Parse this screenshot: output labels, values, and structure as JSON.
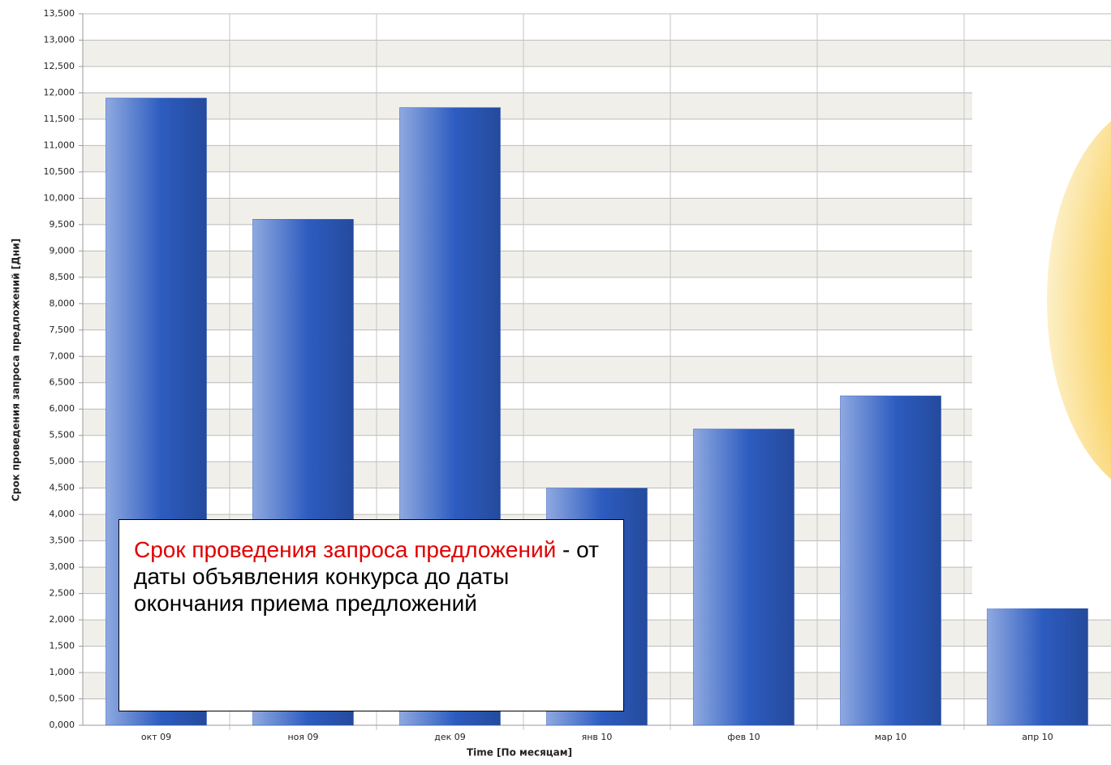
{
  "chart_data": {
    "type": "bar",
    "y_label": "Срок проведения запроса предложений [Дни]",
    "x_label": "Time [По месяцам]",
    "categories": [
      "окт 09",
      "ноя 09",
      "дек 09",
      "янв 10",
      "фев 10",
      "мар 10",
      "апр 10"
    ],
    "values": [
      11.9,
      9.6,
      11.72,
      4.5,
      5.62,
      6.25,
      2.6
    ],
    "color": "#2a56b8",
    "ylim": [
      0,
      13.5
    ],
    "yticks": [
      {
        "value": 0,
        "label": "0,000"
      },
      {
        "value": 0.5,
        "label": "0,500"
      },
      {
        "value": 1,
        "label": "1,000"
      },
      {
        "value": 1.5,
        "label": "1,500"
      },
      {
        "value": 2,
        "label": "2,000"
      },
      {
        "value": 2.5,
        "label": "2,500"
      },
      {
        "value": 3,
        "label": "3,000"
      },
      {
        "value": 3.5,
        "label": "3,500"
      },
      {
        "value": 4,
        "label": "4,000"
      },
      {
        "value": 4.5,
        "label": "4,500"
      },
      {
        "value": 5,
        "label": "5,000"
      },
      {
        "value": 5.5,
        "label": "5,500"
      },
      {
        "value": 6,
        "label": "6,000"
      },
      {
        "value": 6.5,
        "label": "6,500"
      },
      {
        "value": 7,
        "label": "7,000"
      },
      {
        "value": 7.5,
        "label": "7,500"
      },
      {
        "value": 8,
        "label": "8,000"
      },
      {
        "value": 8.5,
        "label": "8,500"
      },
      {
        "value": 9,
        "label": "9,000"
      },
      {
        "value": 9.5,
        "label": "9,500"
      },
      {
        "value": 10,
        "label": "10,000"
      },
      {
        "value": 10.5,
        "label": "10,500"
      },
      {
        "value": 11,
        "label": "11,000"
      },
      {
        "value": 11.5,
        "label": "11,500"
      },
      {
        "value": 12,
        "label": "12,000"
      },
      {
        "value": 12.5,
        "label": "12,500"
      },
      {
        "value": 13,
        "label": "13,000"
      },
      {
        "value": 13.5,
        "label": "13,500"
      }
    ],
    "grid": true,
    "annotation": {
      "highlight": "Срок проведения запроса предложений",
      "text": " - от даты объявления конкурса до даты окончания приема предложений"
    }
  }
}
